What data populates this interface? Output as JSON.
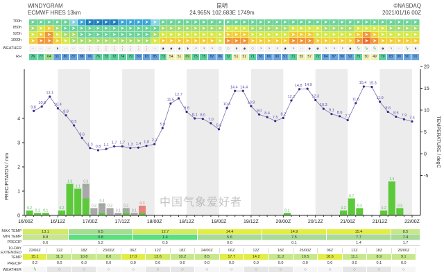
{
  "header": {
    "title": "WINDYGRAM",
    "model": "ECMWF HRES 13km",
    "location": "昆明",
    "coords": "24.965N 102.683E 1749m",
    "credit": "©NASDAQ",
    "run": "2021/01/16 00Z"
  },
  "grid": {
    "row_labels": [
      "700h",
      "850h",
      "925h",
      "1000h"
    ],
    "palette": [
      "#1e7fbf",
      "#1e7fbf",
      "#3aa6d6",
      "#86d4e4",
      "#6dd39a",
      "#a8dd70",
      "#d6e84a",
      "#f2cf3a",
      "#f0983a",
      "#ea7035"
    ],
    "levels": [
      [
        4,
        4,
        4,
        4,
        4,
        3,
        2,
        1,
        1,
        1,
        1,
        2,
        2,
        2,
        2,
        3,
        4,
        4,
        4,
        4,
        4,
        4,
        4,
        4,
        4,
        4,
        4,
        4,
        4,
        4,
        4,
        4,
        4,
        4,
        4,
        4,
        4,
        4,
        4,
        4,
        4,
        4,
        4,
        4,
        4,
        4,
        4,
        4
      ],
      [
        5,
        6,
        7,
        5,
        4,
        4,
        4,
        4,
        4,
        4,
        4,
        4,
        4,
        4,
        4,
        4,
        5,
        5,
        5,
        5,
        5,
        5,
        5,
        5,
        6,
        6,
        6,
        5,
        5,
        5,
        5,
        5,
        6,
        6,
        6,
        6,
        5,
        5,
        5,
        5,
        6,
        6,
        6,
        6,
        5,
        5,
        5,
        5
      ],
      [
        6,
        7,
        8,
        6,
        5,
        5,
        4,
        4,
        4,
        4,
        4,
        4,
        4,
        4,
        4,
        5,
        6,
        6,
        6,
        6,
        6,
        6,
        6,
        6,
        7,
        7,
        7,
        6,
        6,
        6,
        6,
        6,
        7,
        7,
        7,
        6,
        6,
        6,
        6,
        6,
        7,
        8,
        7,
        6,
        6,
        6,
        6,
        6
      ],
      [
        7,
        8,
        8,
        7,
        6,
        5,
        5,
        5,
        5,
        5,
        5,
        5,
        5,
        5,
        5,
        6,
        7,
        7,
        7,
        7,
        7,
        7,
        7,
        6,
        8,
        8,
        8,
        7,
        7,
        7,
        7,
        7,
        8,
        8,
        8,
        7,
        7,
        7,
        7,
        7,
        8,
        9,
        8,
        7,
        7,
        7,
        7,
        7
      ]
    ]
  },
  "weather": {
    "label": "WEATHER",
    "icons": [
      "dz",
      "dz",
      "dz",
      "pc",
      "dz",
      "dz",
      "dz",
      "sl",
      "sl",
      "sl",
      "sl",
      "sl",
      "sl",
      "sl",
      "sl",
      "dz",
      "mc",
      "mc",
      "mc",
      "pc",
      "cl",
      "cl",
      "cl",
      "clr",
      "clr",
      "pc",
      "mc",
      "clr",
      "cl",
      "cl",
      "cl",
      "mc",
      "cl",
      "dz",
      "mc",
      "mc",
      "cl",
      "cl",
      "cl",
      "mc",
      "th",
      "th",
      "th",
      "mc",
      "cl",
      "dz",
      "th",
      "pc"
    ]
  },
  "rh": {
    "label": "RH",
    "values": [
      76,
      77,
      64,
      91,
      86,
      87,
      88,
      96,
      76,
      73,
      72,
      74,
      79,
      80,
      83,
      85,
      73,
      54,
      51,
      69,
      75,
      75,
      82,
      86,
      72,
      51,
      51,
      71,
      83,
      86,
      90,
      91,
      71,
      55,
      57,
      72,
      84,
      87,
      90,
      92,
      75,
      50,
      49,
      70,
      83,
      88,
      90,
      91
    ]
  },
  "chart_data": {
    "type": "bar+line",
    "ylabel_left": "PRECIPITATON / mm",
    "ylabel_right": "TEMPERATURE / degC",
    "left_ticks": [
      0,
      1,
      2,
      3,
      4
    ],
    "right_ticks": [
      -5,
      0,
      5,
      10,
      15,
      20
    ],
    "x_ticks": [
      "16/00Z",
      "16/12Z",
      "17/00Z",
      "17/12Z",
      "18/00Z",
      "18/12Z",
      "19/00Z",
      "19/12Z",
      "20/00Z",
      "20/12Z",
      "21/00Z",
      "21/12Z",
      "22/00Z"
    ],
    "temperature": {
      "start": "16/03Z",
      "step_hours": 3,
      "values": [
        9.8,
        10.8,
        13.1,
        10.4,
        8.8,
        6.5,
        3.6,
        1.3,
        0.8,
        1.1,
        1.7,
        1.7,
        1.3,
        1.4,
        1.8,
        2.2,
        5.9,
        11.5,
        12.7,
        9.6,
        8.1,
        8.0,
        7.0,
        5.6,
        10.5,
        14.4,
        14.4,
        10.9,
        9.0,
        8.4,
        7.5,
        8.2,
        12.2,
        14.8,
        14.9,
        12.3,
        10.3,
        9.1,
        8.6,
        7.7,
        11.6,
        15.4,
        15.3,
        11.9,
        9.6,
        8.5,
        7.9,
        7.4
      ]
    },
    "precip": [
      {
        "t": "16/00Z",
        "rain": 0.2
      },
      {
        "t": "16/03Z",
        "rain": 0.1
      },
      {
        "t": "16/06Z",
        "rain": 0.1
      },
      {
        "t": "16/12Z",
        "rain": 0.2
      },
      {
        "t": "16/15Z",
        "rain": 1.3
      },
      {
        "t": "16/18Z",
        "rain": 1.1
      },
      {
        "t": "16/21Z",
        "rain": 0.7,
        "snow": 0.6
      },
      {
        "t": "17/00Z",
        "snow": 0.3
      },
      {
        "t": "17/03Z",
        "rain": 0.1,
        "snow": 0.4
      },
      {
        "t": "17/06Z",
        "snow": 0.3
      },
      {
        "t": "17/09Z",
        "snow": 0.1
      },
      {
        "t": "17/12Z",
        "rain": 0.1,
        "snow": 0.2
      },
      {
        "t": "17/15Z",
        "snow": 0.1
      },
      {
        "t": "17/18Z",
        "rain": 0.1,
        "mixed": 0.3
      },
      {
        "t": "20/00Z",
        "rain": 0.1
      },
      {
        "t": "20/21Z",
        "rain": 0.2
      },
      {
        "t": "21/00Z",
        "rain": 0.7
      },
      {
        "t": "21/03Z",
        "rain": 0.3
      },
      {
        "t": "21/12Z",
        "rain": 0.2
      },
      {
        "t": "21/15Z",
        "rain": 1.4
      },
      {
        "t": "21/18Z",
        "rain": 0.3
      }
    ],
    "colors": {
      "rain": "#5cc93a",
      "snow": "#a8a8a8",
      "mixed": "#f08080",
      "temp": "#3b2a8a",
      "night": "#ececec"
    }
  },
  "daily": {
    "labels": {
      "max": "MAX TEMP",
      "min": "MIN TEMP",
      "precip": "PRECIP"
    },
    "max": [
      "13.1",
      "6.5",
      "12.7",
      "14.4",
      "14.9",
      "15.4",
      "8.5"
    ],
    "min": [
      "8.8",
      "0.8",
      "1.4",
      "5.6",
      "7.5",
      "7.7",
      "7.4"
    ],
    "precip": [
      "0.6",
      "5.2",
      "0.5",
      "0.0",
      "0.1",
      "1.4",
      "1.7"
    ]
  },
  "extended": {
    "labels": {
      "title": "10-DAY EXTENDED",
      "temp": "TEMP",
      "precip": "PRECIP",
      "weather": "WEATHER"
    },
    "times": [
      "22/06Z",
      "12Z",
      "18Z",
      "23/00Z",
      "06Z",
      "12Z",
      "18Z",
      "24/00Z",
      "06Z",
      "12Z",
      "18Z",
      "25/00Z",
      "06Z",
      "12Z",
      "18Z",
      "26/00Z"
    ],
    "temp": [
      "15.1",
      "11.3",
      "10.8",
      "8.0",
      "17.0",
      "13.6",
      "10.2",
      "8.5",
      "17.7",
      "14.2",
      "11.2",
      "10.5",
      "18.6",
      "11.1",
      "8.9",
      "9.1"
    ],
    "precip": [
      "0.2",
      "0.0",
      "0.0",
      "0.0",
      "0.0",
      "0.0",
      "0.0",
      "0.0",
      "0.0",
      "0.0",
      "0.0",
      "0.0",
      "0.0",
      "0.0",
      "0.1",
      "0.0"
    ],
    "weather": [
      "th",
      "clr",
      "clr",
      "clr",
      "clr",
      "clr",
      "clr",
      "clr",
      "clr",
      "clr",
      "clr",
      "clr",
      "clr",
      "clr",
      "clr",
      "clr"
    ]
  },
  "watermark": "中国气象爱好者"
}
